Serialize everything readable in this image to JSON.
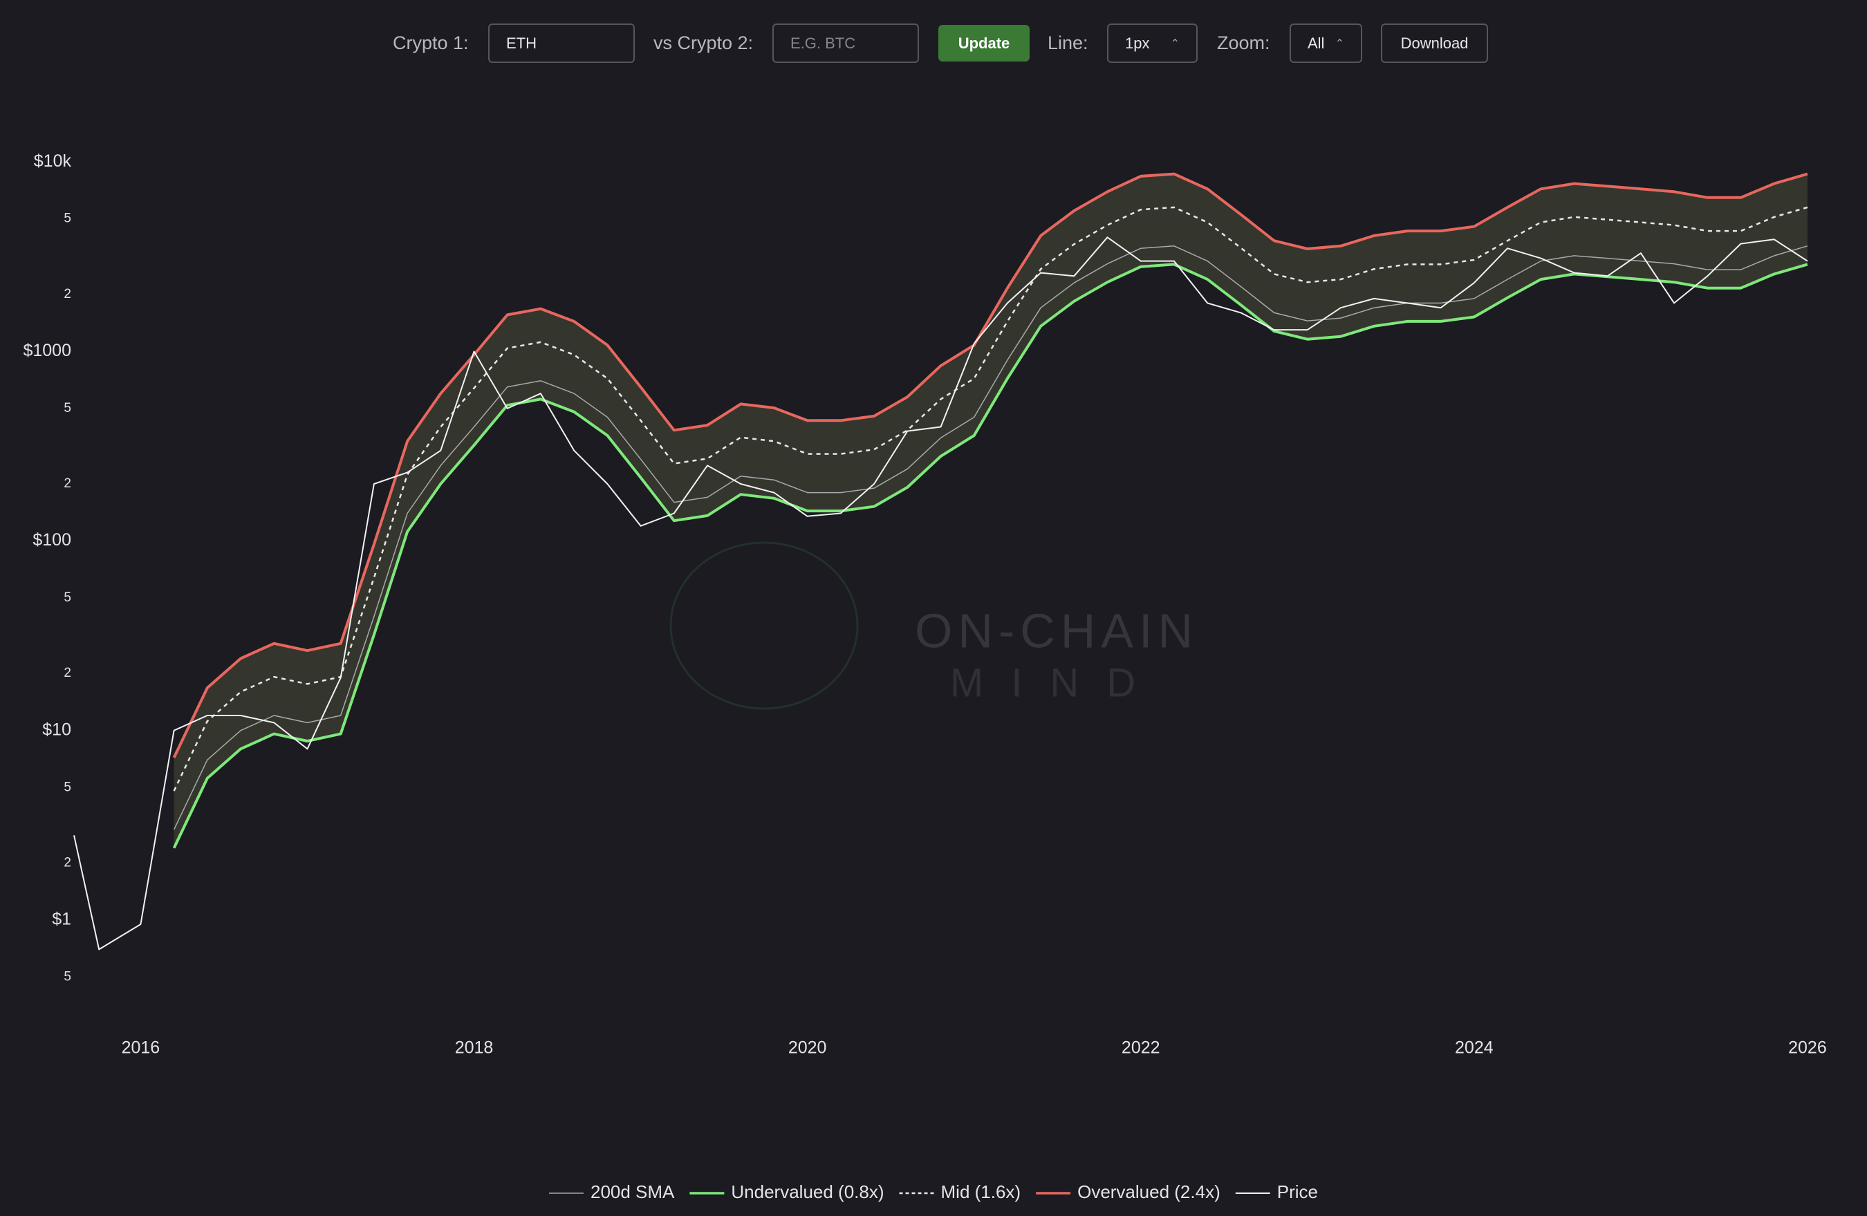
{
  "toolbar": {
    "crypto1_label": "Crypto 1:",
    "crypto1_value": "ETH",
    "crypto2_label": "vs Crypto 2:",
    "crypto2_placeholder": "E.G. BTC",
    "update": "Update",
    "line_label": "Line:",
    "line_value": "1px",
    "zoom_label": "Zoom:",
    "zoom_value": "All",
    "download": "Download"
  },
  "watermark": {
    "line1": "ON-CHAIN",
    "line2": "MIND"
  },
  "chart_data": {
    "type": "line",
    "log_y": true,
    "legend": "bottom",
    "x": [
      2015.6,
      2015.75,
      2016.0,
      2016.2,
      2016.4,
      2016.6,
      2016.8,
      2017.0,
      2017.2,
      2017.4,
      2017.6,
      2017.8,
      2018.0,
      2018.2,
      2018.4,
      2018.6,
      2018.8,
      2019.0,
      2019.2,
      2019.4,
      2019.6,
      2019.8,
      2020.0,
      2020.2,
      2020.4,
      2020.6,
      2020.8,
      2021.0,
      2021.2,
      2021.4,
      2021.6,
      2021.8,
      2022.0,
      2022.2,
      2022.4,
      2022.6,
      2022.8,
      2023.0,
      2023.2,
      2023.4,
      2023.6,
      2023.8,
      2024.0,
      2024.2,
      2024.4,
      2024.6,
      2024.8,
      2025.0,
      2025.2,
      2025.4,
      2025.6,
      2025.8,
      2026.0
    ],
    "xlim": [
      2015.6,
      2026.05
    ],
    "xticks": [
      2016,
      2018,
      2020,
      2022,
      2024,
      2026
    ],
    "ylim": [
      0.25,
      17000
    ],
    "yticks": [
      {
        "value": 0.5,
        "label": "5"
      },
      {
        "value": 1,
        "label": "$1"
      },
      2,
      5,
      {
        "value": 10,
        "label": "$10"
      },
      {
        "value": 20,
        "label": "2"
      },
      {
        "value": 50,
        "label": "5"
      },
      {
        "value": 100,
        "label": "$100"
      },
      {
        "value": 200,
        "label": "2"
      },
      {
        "value": 500,
        "label": "5"
      },
      {
        "value": 1000,
        "label": "$1000"
      },
      {
        "value": 2000,
        "label": "2"
      },
      {
        "value": 5000,
        "label": "5"
      },
      {
        "value": 10000,
        "label": "$10k"
      }
    ],
    "series": [
      {
        "name": "200d SMA",
        "color": "#a9a9ae",
        "width": 1.5,
        "values": [
          null,
          null,
          null,
          3,
          7,
          10,
          12,
          11,
          12,
          40,
          140,
          250,
          400,
          650,
          700,
          600,
          450,
          270,
          160,
          170,
          220,
          210,
          180,
          180,
          190,
          240,
          350,
          450,
          900,
          1700,
          2300,
          2900,
          3500,
          3600,
          3000,
          2200,
          1600,
          1450,
          1500,
          1700,
          1800,
          1800,
          1900,
          2400,
          3000,
          3200,
          3100,
          3000,
          2900,
          2700,
          2700,
          3200,
          3600
        ]
      },
      {
        "name": "Undervalued (0.8x)",
        "color": "#7ee87a",
        "width": 4,
        "values": [
          null,
          null,
          null,
          2.4,
          5.6,
          8,
          9.6,
          8.8,
          9.6,
          32,
          112,
          200,
          320,
          520,
          560,
          480,
          360,
          216,
          128,
          136,
          176,
          168,
          144,
          144,
          152,
          192,
          280,
          360,
          720,
          1360,
          1840,
          2320,
          2800,
          2880,
          2400,
          1760,
          1280,
          1160,
          1200,
          1360,
          1440,
          1440,
          1520,
          1920,
          2400,
          2560,
          2480,
          2400,
          2320,
          2160,
          2160,
          2560,
          2880
        ]
      },
      {
        "name": "Mid (1.6x)",
        "color": "#e8e8ea",
        "width": 2.5,
        "dashed": true,
        "values": [
          null,
          null,
          null,
          4.8,
          11.2,
          16,
          19.2,
          17.6,
          19.2,
          64,
          224,
          400,
          640,
          1040,
          1120,
          960,
          720,
          432,
          256,
          272,
          352,
          336,
          288,
          288,
          304,
          384,
          560,
          720,
          1440,
          2720,
          3680,
          4640,
          5600,
          5760,
          4800,
          3520,
          2560,
          2320,
          2400,
          2720,
          2880,
          2880,
          3040,
          3840,
          4800,
          5120,
          4960,
          4800,
          4640,
          4320,
          4320,
          5120,
          5760
        ]
      },
      {
        "name": "Overvalued (2.4x)",
        "color": "#e8675e",
        "width": 4,
        "values": [
          null,
          null,
          null,
          7.2,
          16.8,
          24,
          28.8,
          26.4,
          28.8,
          96,
          336,
          600,
          960,
          1560,
          1680,
          1440,
          1080,
          648,
          384,
          408,
          528,
          504,
          432,
          432,
          456,
          576,
          840,
          1080,
          2160,
          4080,
          5520,
          6960,
          8400,
          8640,
          7200,
          5280,
          3840,
          3480,
          3600,
          4080,
          4320,
          4320,
          4560,
          5760,
          7200,
          7680,
          7440,
          7200,
          6960,
          6480,
          6480,
          7680,
          8640
        ]
      },
      {
        "name": "Price",
        "color": "#f2f2f4",
        "width": 2,
        "values": [
          2.8,
          0.7,
          0.95,
          10,
          12,
          12,
          11,
          8,
          19,
          200,
          230,
          300,
          1000,
          500,
          600,
          300,
          200,
          120,
          140,
          250,
          200,
          180,
          135,
          140,
          200,
          380,
          400,
          1100,
          1800,
          2600,
          2500,
          4000,
          3000,
          3000,
          1800,
          1600,
          1300,
          1300,
          1700,
          1900,
          1800,
          1700,
          2300,
          3500,
          3100,
          2600,
          2500,
          3300,
          1800,
          2500,
          3700,
          3900,
          3000
        ]
      }
    ]
  }
}
